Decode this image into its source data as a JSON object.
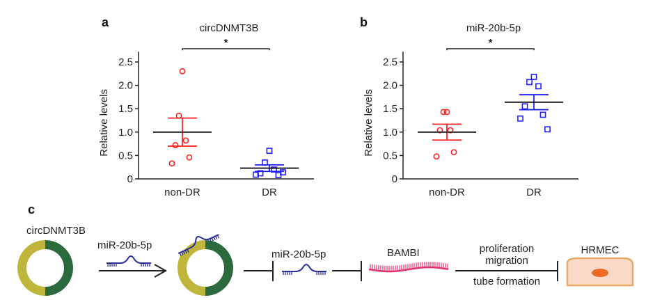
{
  "panels": {
    "a": "a",
    "b": "b",
    "c": "c"
  },
  "chart_data": [
    {
      "type": "scatter",
      "title": "circDNMT3B",
      "ylabel": "Relative levels",
      "xlabel": "",
      "categories": [
        "non-DR",
        "DR"
      ],
      "yticks": [
        "0",
        "0.5",
        "1.0",
        "1.5",
        "2.0",
        "2.5"
      ],
      "ylim": [
        0,
        2.6
      ],
      "significance": "*",
      "series": [
        {
          "name": "non-DR",
          "marker": "circle",
          "color": "#ff2020",
          "values": [
            2.3,
            1.35,
            0.82,
            0.72,
            0.46,
            0.33
          ],
          "mean": 1.0,
          "sem": 0.3
        },
        {
          "name": "DR",
          "marker": "square",
          "color": "#2020ff",
          "values": [
            0.6,
            0.35,
            0.2,
            0.12,
            0.08,
            0.09,
            0.14
          ],
          "mean": 0.23,
          "sem": 0.07
        }
      ]
    },
    {
      "type": "scatter",
      "title": "miR-20b-5p",
      "ylabel": "Relative levels",
      "xlabel": "",
      "categories": [
        "non-DR",
        "DR"
      ],
      "yticks": [
        "0",
        "0.5",
        "1.0",
        "1.5",
        "2.0",
        "2.5"
      ],
      "ylim": [
        0,
        2.6
      ],
      "significance": "*",
      "series": [
        {
          "name": "non-DR",
          "marker": "circle",
          "color": "#ff2020",
          "values": [
            1.43,
            1.43,
            1.04,
            1.04,
            0.57,
            0.48
          ],
          "mean": 1.0,
          "sem": 0.17
        },
        {
          "name": "DR",
          "marker": "square",
          "color": "#2020ff",
          "values": [
            2.18,
            2.07,
            1.98,
            1.55,
            1.37,
            1.29,
            1.06
          ],
          "mean": 1.64,
          "sem": 0.16
        }
      ]
    }
  ],
  "diagram": {
    "circ_label": "circDNMT3B",
    "mir_label_1": "miR-20b-5p",
    "mir_label_2": "miR-20b-5p",
    "target_label": "BAMBI",
    "effect_1": "proliferation",
    "effect_2": "migration",
    "effect_3": "tube formation",
    "cell_label": "HRMEC",
    "colors": {
      "circ_left": "#c0b53b",
      "circ_right": "#2b6a3d",
      "mirna": "#2b2f9a",
      "bambi": "#e5306a",
      "cell_fill": "#f9dac6",
      "cell_stroke": "#e9a864",
      "nucleus": "#ea6a26"
    }
  }
}
